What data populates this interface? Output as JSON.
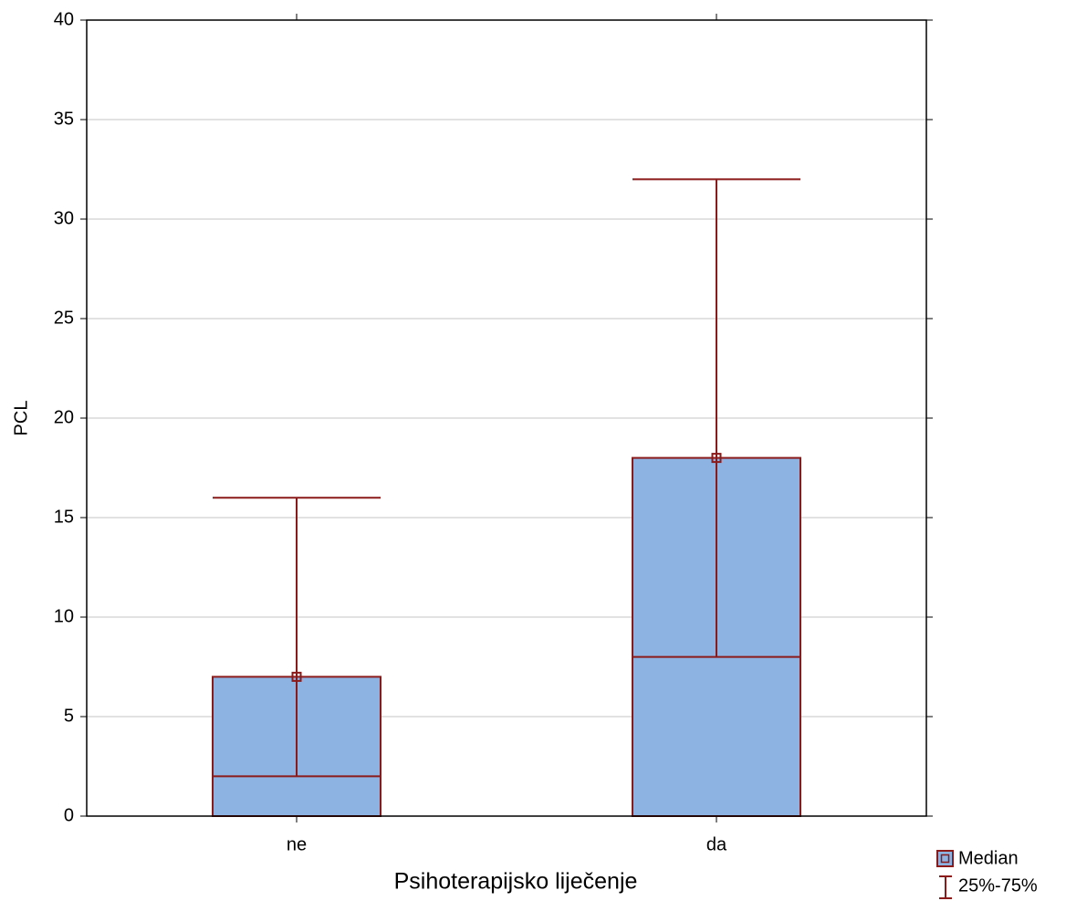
{
  "chart_data": {
    "type": "box",
    "y_label": "PCL",
    "x_label": "Psihoterapijsko liječenje",
    "categories": [
      "ne",
      "da"
    ],
    "series": [
      {
        "name": "Median",
        "color": "#8db3e2",
        "values": [
          7,
          18
        ]
      },
      {
        "name": "25%-75%",
        "color": "#8b1a1a",
        "low": [
          2,
          8
        ],
        "high": [
          16,
          32
        ]
      }
    ],
    "ylim": [
      0,
      40
    ],
    "yticks": [
      0,
      5,
      10,
      15,
      20,
      25,
      30,
      35,
      40
    ],
    "grid": true
  }
}
